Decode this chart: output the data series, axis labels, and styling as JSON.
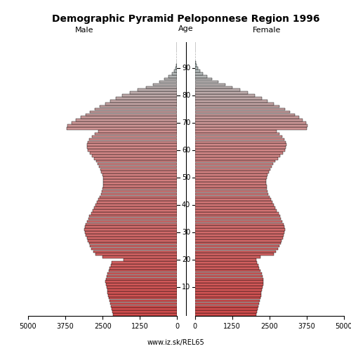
{
  "title": "Demographic Pyramid Peloponnese Region 1996",
  "label_male": "Male",
  "label_female": "Female",
  "label_age": "Age",
  "footer": "www.iz.sk/REL65",
  "xlim": 5000,
  "xticks": [
    0,
    1250,
    2500,
    3750,
    5000
  ],
  "ytick_positions": [
    10,
    20,
    30,
    40,
    50,
    60,
    70,
    80,
    90
  ],
  "male": [
    2150,
    2180,
    2200,
    2220,
    2250,
    2270,
    2290,
    2310,
    2330,
    2350,
    2370,
    2390,
    2400,
    2390,
    2370,
    2340,
    2300,
    2260,
    2220,
    2190,
    1800,
    2500,
    2750,
    2820,
    2870,
    2920,
    2960,
    3000,
    3030,
    3060,
    3090,
    3110,
    3090,
    3060,
    3020,
    2980,
    2940,
    2890,
    2840,
    2790,
    2740,
    2690,
    2640,
    2590,
    2550,
    2520,
    2500,
    2490,
    2480,
    2480,
    2490,
    2510,
    2540,
    2570,
    2610,
    2660,
    2720,
    2790,
    2860,
    2930,
    2990,
    3020,
    3020,
    2990,
    2940,
    2860,
    2760,
    2650,
    3700,
    3680,
    3550,
    3400,
    3240,
    3080,
    2920,
    2760,
    2590,
    2420,
    2240,
    2060,
    1840,
    1590,
    1320,
    1050,
    810,
    600,
    430,
    290,
    180,
    105,
    58,
    30,
    15,
    8,
    4,
    2,
    1,
    0,
    0,
    0
  ],
  "female": [
    2050,
    2080,
    2100,
    2120,
    2150,
    2170,
    2190,
    2210,
    2230,
    2250,
    2270,
    2290,
    2300,
    2290,
    2270,
    2240,
    2200,
    2160,
    2120,
    2090,
    2050,
    2200,
    2650,
    2720,
    2780,
    2830,
    2870,
    2910,
    2940,
    2970,
    3000,
    3020,
    3000,
    2970,
    2930,
    2890,
    2850,
    2800,
    2750,
    2700,
    2650,
    2600,
    2550,
    2500,
    2460,
    2430,
    2410,
    2400,
    2390,
    2390,
    2410,
    2440,
    2480,
    2520,
    2570,
    2630,
    2700,
    2780,
    2860,
    2940,
    3010,
    3050,
    3060,
    3040,
    2990,
    2920,
    2830,
    2730,
    3750,
    3780,
    3720,
    3620,
    3490,
    3340,
    3180,
    3010,
    2830,
    2640,
    2440,
    2240,
    2020,
    1780,
    1520,
    1260,
    1010,
    780,
    580,
    410,
    270,
    165,
    95,
    52,
    27,
    13,
    6,
    3,
    1,
    0,
    0,
    0
  ],
  "color_breakpoints": [
    65,
    85
  ],
  "color_young": "#cc4444",
  "color_mid": "#c8a0a0",
  "color_old": "#c8c0c0"
}
